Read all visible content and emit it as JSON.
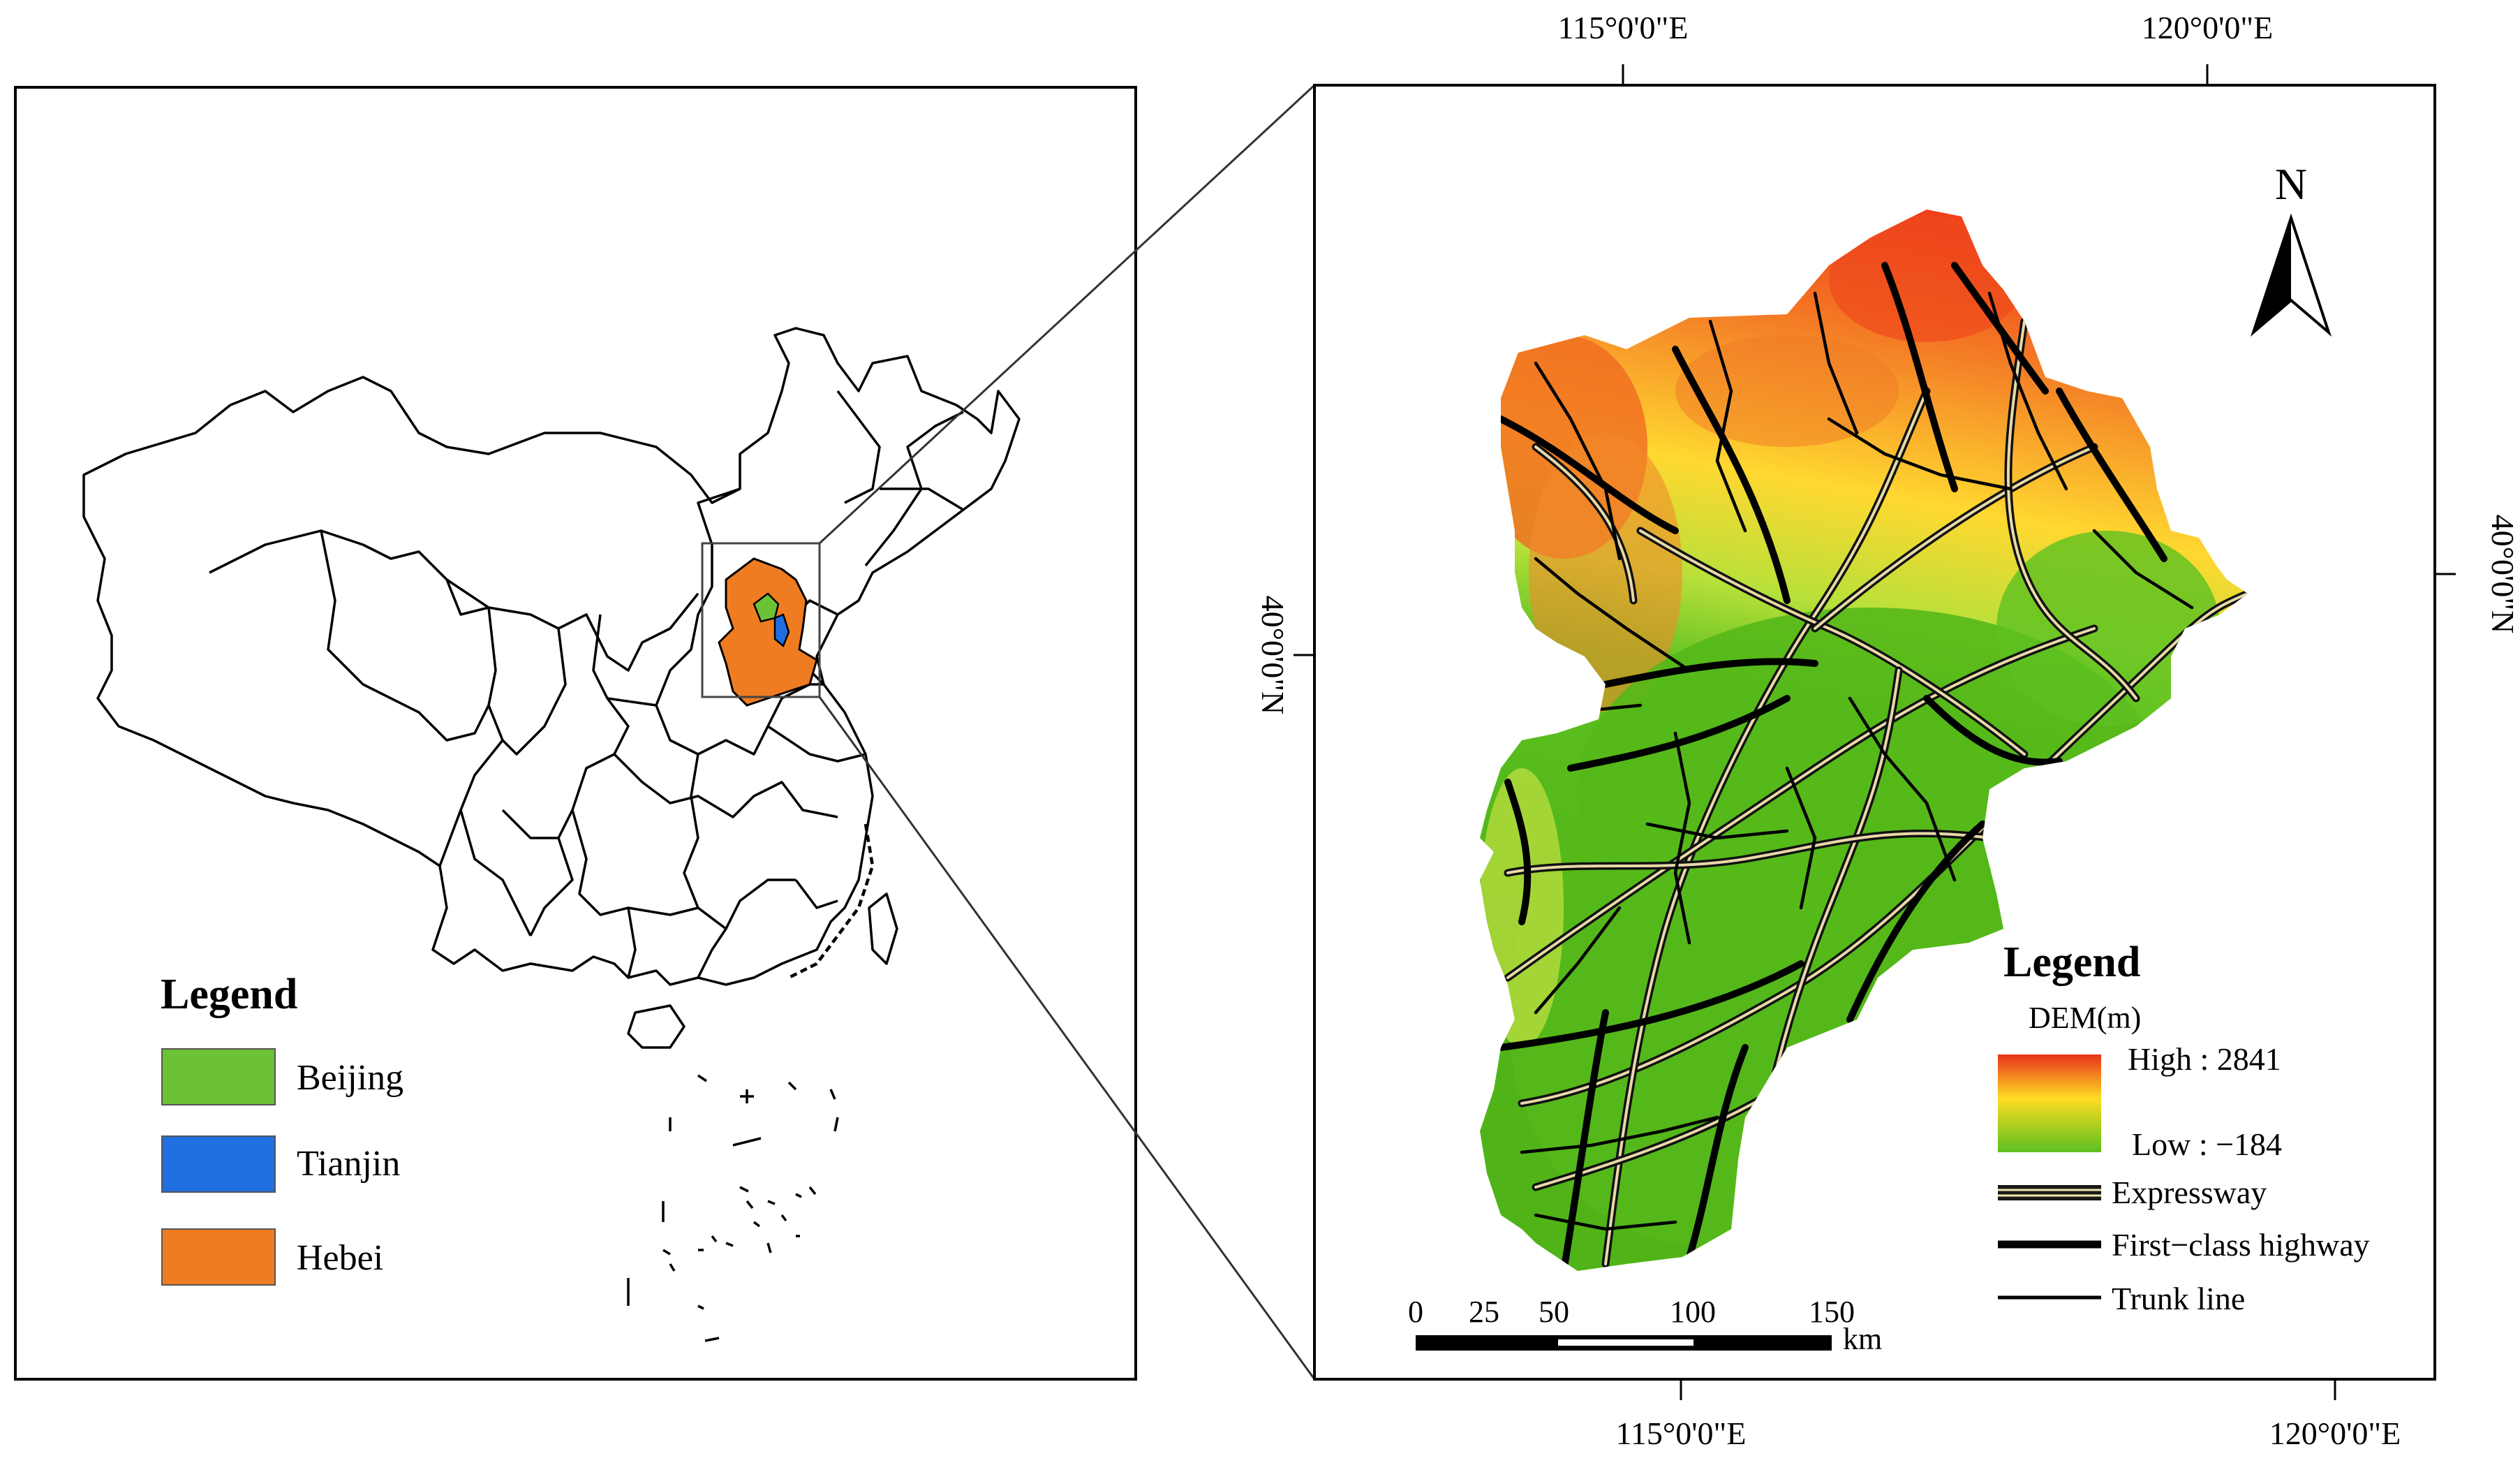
{
  "overview_map": {
    "legend": {
      "title": "Legend",
      "items": [
        {
          "label": "Beijing",
          "color": "#6cc235"
        },
        {
          "label": "Tianjin",
          "color": "#1f6fe0"
        },
        {
          "label": "Hebei",
          "color": "#f07c22"
        }
      ]
    }
  },
  "detail_map": {
    "top_axis": [
      "115°0'0\"E",
      "120°0'0\"E"
    ],
    "bottom_axis": [
      "115°0'0\"E",
      "120°0'0\"E"
    ],
    "left_axis": [
      "40°0'0\"N"
    ],
    "right_axis": [
      "40°0'0\"N"
    ],
    "north_arrow_label": "N",
    "legend": {
      "title": "Legend",
      "dem_title": "DEM(m)",
      "high_label": "High : 2841",
      "low_label": "Low : −184",
      "dem_colors": [
        "#e8321c",
        "#ffdd22",
        "#5cc020"
      ],
      "roads": [
        {
          "label": "Expressway",
          "symbol": "expressway"
        },
        {
          "label": "First−class highway",
          "symbol": "first-class"
        },
        {
          "label": "Trunk line",
          "symbol": "trunk"
        }
      ]
    },
    "scale_bar": {
      "ticks": [
        "0",
        "25",
        "50",
        "100",
        "150"
      ],
      "unit": "km"
    }
  }
}
